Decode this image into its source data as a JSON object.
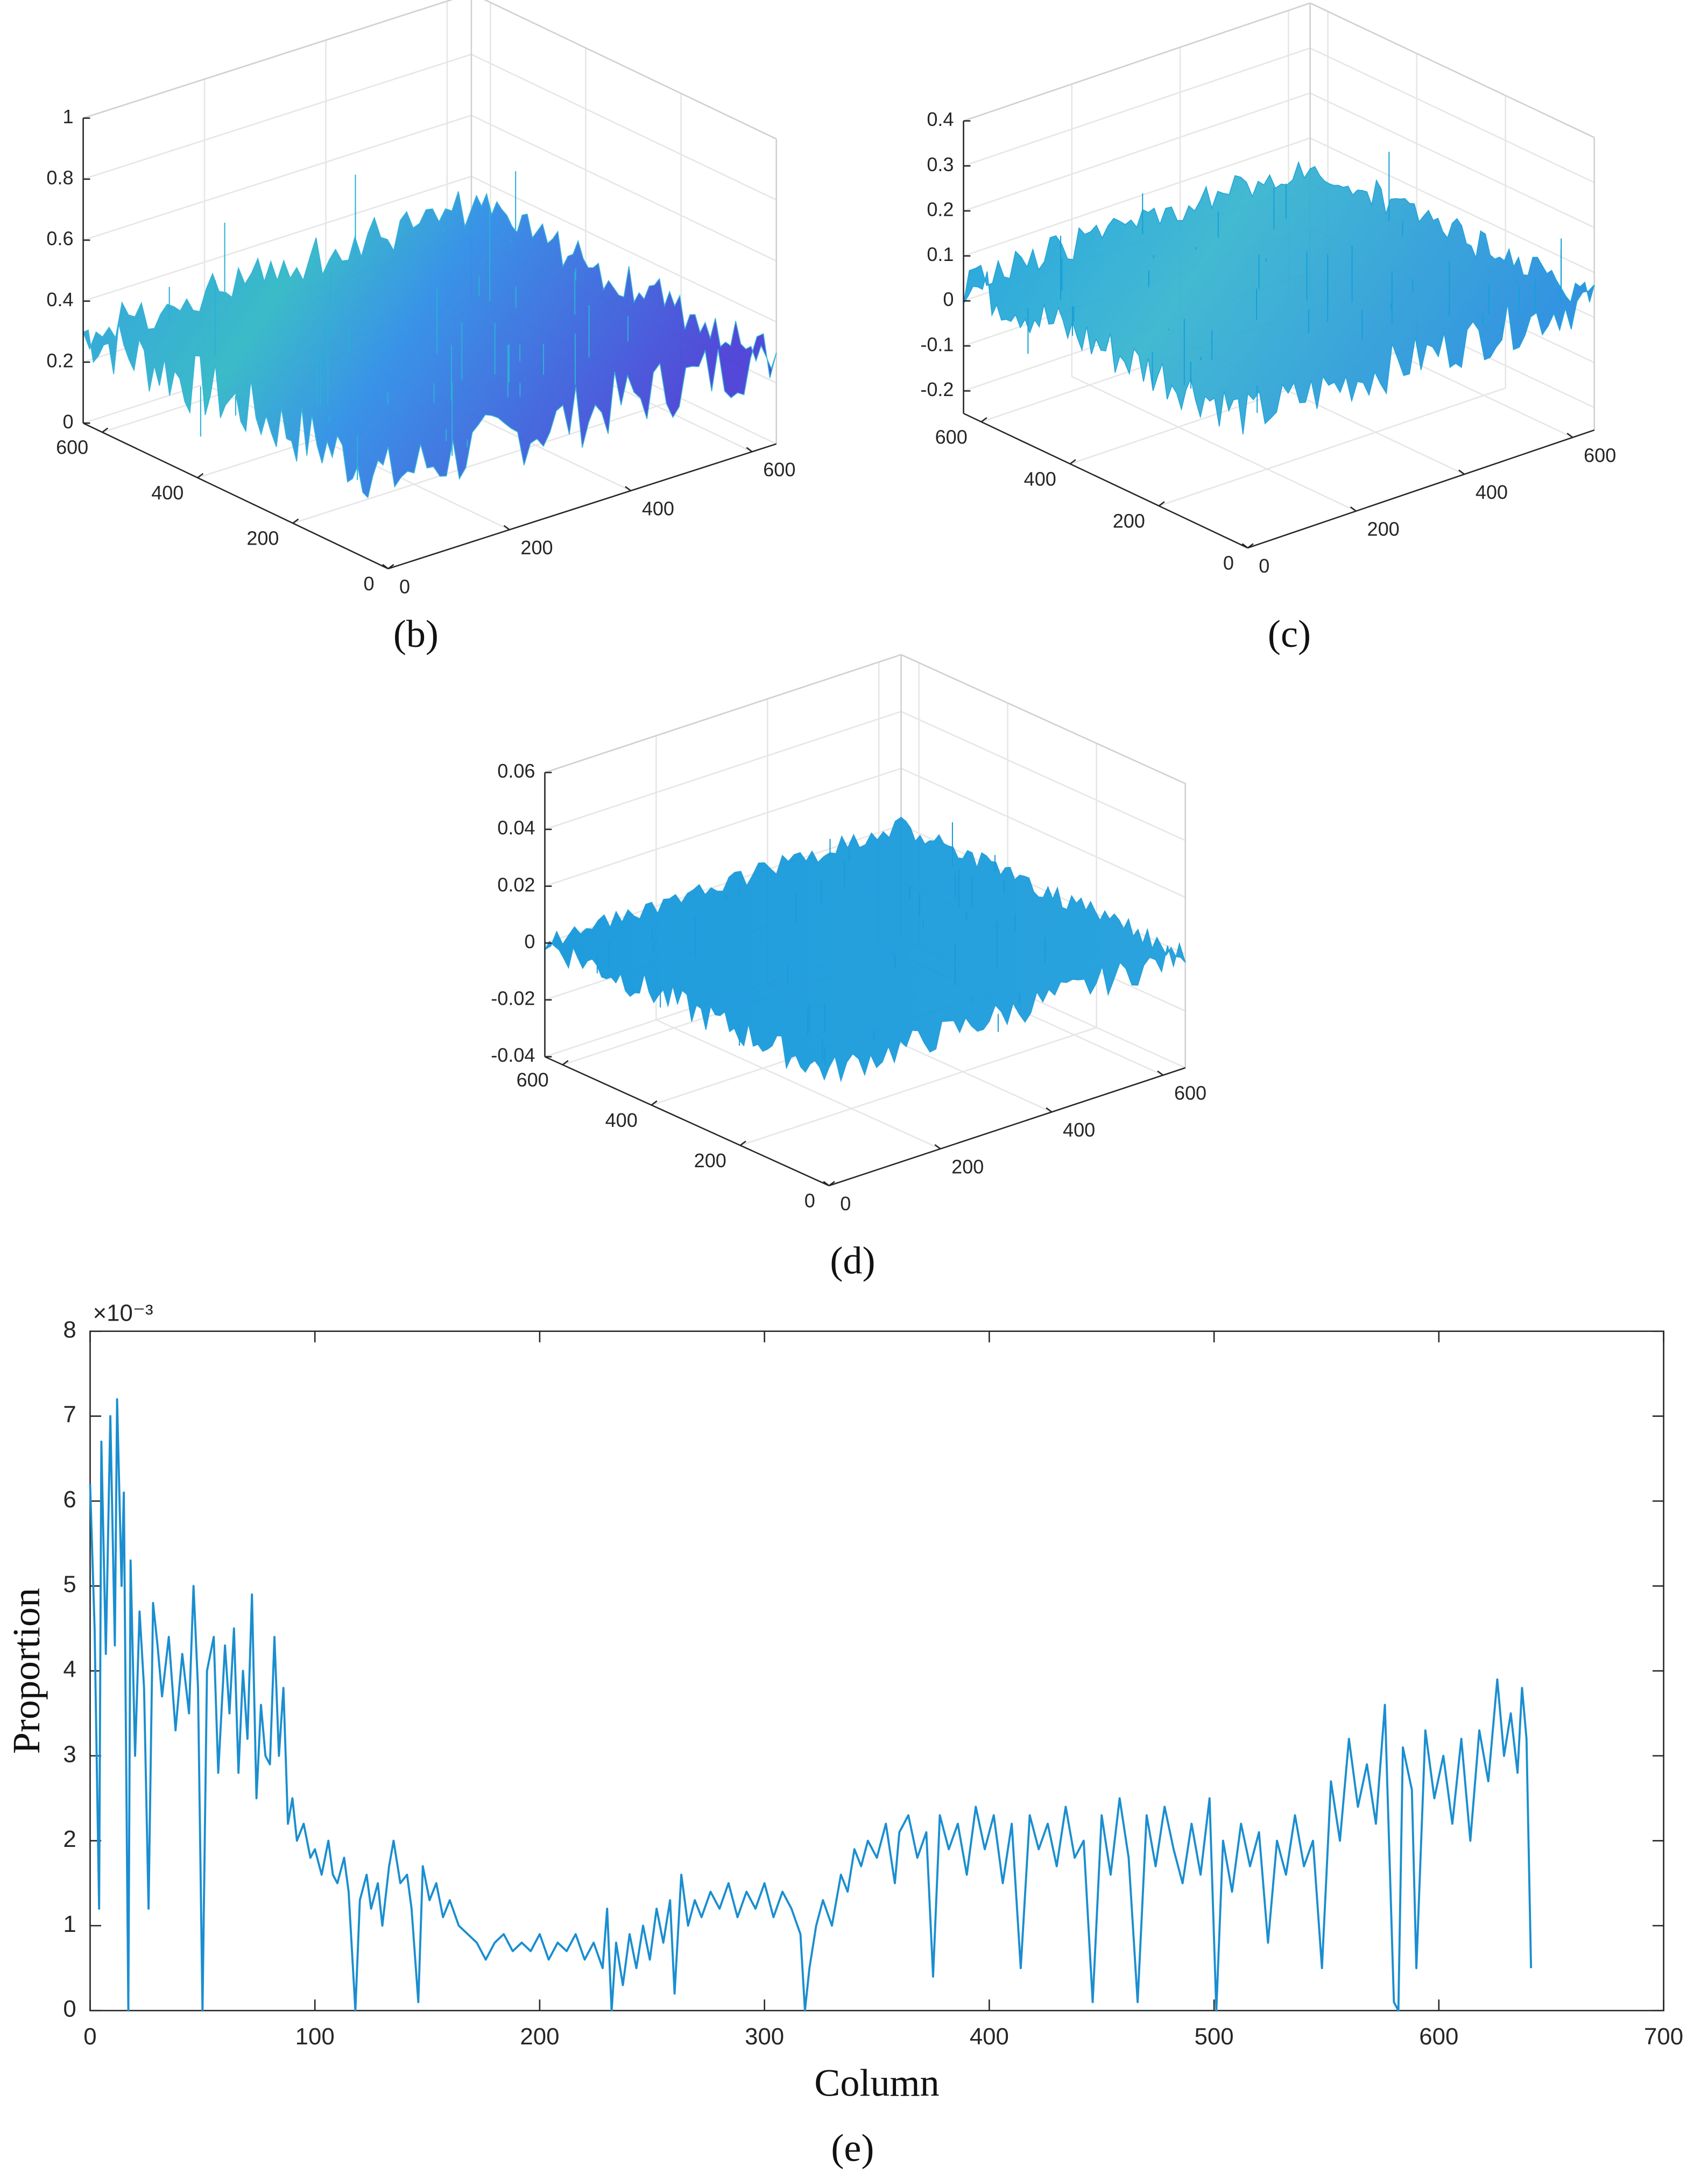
{
  "chart_data": [
    {
      "type": "surface",
      "caption": "(b)",
      "xlim": [
        0,
        640
      ],
      "ylim": [
        0,
        640
      ],
      "zlim": [
        0,
        1
      ],
      "xticks": [
        0,
        200,
        400,
        600
      ],
      "yticks": [
        0,
        200,
        400,
        600
      ],
      "zticks": [
        0,
        0.2,
        0.4,
        0.6,
        0.8,
        1
      ],
      "grid": true
    },
    {
      "type": "surface",
      "caption": "(c)",
      "xlim": [
        0,
        640
      ],
      "ylim": [
        0,
        640
      ],
      "zlim": [
        -0.25,
        0.4
      ],
      "xticks": [
        0,
        200,
        400,
        600
      ],
      "yticks": [
        0,
        200,
        400,
        600
      ],
      "zticks": [
        -0.2,
        -0.1,
        0,
        0.1,
        0.2,
        0.3,
        0.4
      ],
      "grid": true
    },
    {
      "type": "surface",
      "caption": "(d)",
      "xlim": [
        0,
        640
      ],
      "ylim": [
        0,
        640
      ],
      "zlim": [
        -0.04,
        0.06
      ],
      "xticks": [
        0,
        200,
        400,
        600
      ],
      "yticks": [
        0,
        200,
        400,
        600
      ],
      "zticks": [
        -0.04,
        -0.02,
        0,
        0.02,
        0.04,
        0.06
      ],
      "grid": true
    },
    {
      "type": "line",
      "caption": "(e)",
      "xlabel": "Column",
      "ylabel": "Proportion",
      "exponent": "×10⁻³",
      "color": "#1a8ed0",
      "xlim": [
        0,
        700
      ],
      "ylim": [
        0,
        8
      ],
      "xticks": [
        0,
        100,
        200,
        300,
        400,
        500,
        600,
        700
      ],
      "yticks": [
        0,
        1,
        2,
        3,
        4,
        5,
        6,
        7,
        8
      ],
      "x": [
        0,
        2,
        4,
        5,
        7,
        9,
        11,
        12,
        14,
        15,
        17,
        18,
        20,
        22,
        24,
        26,
        28,
        30,
        32,
        35,
        38,
        41,
        44,
        46,
        48,
        50,
        52,
        55,
        57,
        60,
        62,
        64,
        66,
        68,
        70,
        72,
        74,
        76,
        78,
        80,
        82,
        84,
        86,
        88,
        90,
        92,
        95,
        98,
        100,
        103,
        106,
        108,
        110,
        113,
        115,
        118,
        120,
        123,
        125,
        128,
        130,
        133,
        135,
        138,
        141,
        143,
        146,
        148,
        151,
        154,
        157,
        160,
        164,
        168,
        172,
        176,
        180,
        184,
        188,
        192,
        196,
        200,
        204,
        208,
        212,
        216,
        220,
        224,
        228,
        230,
        232,
        234,
        237,
        240,
        243,
        246,
        249,
        252,
        255,
        258,
        260,
        263,
        266,
        269,
        272,
        276,
        280,
        284,
        288,
        292,
        296,
        300,
        304,
        308,
        312,
        316,
        318,
        320,
        323,
        326,
        330,
        334,
        337,
        340,
        343,
        346,
        350,
        354,
        358,
        360,
        364,
        368,
        372,
        375,
        378,
        382,
        386,
        390,
        394,
        398,
        402,
        406,
        410,
        414,
        418,
        422,
        426,
        430,
        434,
        438,
        442,
        446,
        450,
        454,
        458,
        462,
        466,
        470,
        474,
        478,
        482,
        486,
        490,
        494,
        498,
        501,
        504,
        508,
        512,
        516,
        520,
        524,
        528,
        532,
        536,
        540,
        544,
        548,
        552,
        556,
        560,
        564,
        568,
        572,
        576,
        580,
        582,
        584,
        588,
        590,
        594,
        598,
        602,
        606,
        610,
        614,
        618,
        622,
        626,
        629,
        632,
        635,
        637,
        639,
        641
      ],
      "values": [
        6.2,
        4.5,
        1.2,
        6.7,
        4.2,
        7.0,
        4.3,
        7.2,
        5.0,
        6.1,
        0,
        5.3,
        3.0,
        4.7,
        3.8,
        1.2,
        4.8,
        4.3,
        3.7,
        4.4,
        3.3,
        4.2,
        3.5,
        5.0,
        3.8,
        0,
        4.0,
        4.4,
        2.8,
        4.3,
        3.5,
        4.5,
        2.8,
        4.0,
        3.2,
        4.9,
        2.5,
        3.6,
        3.0,
        2.9,
        4.4,
        3.0,
        3.8,
        2.2,
        2.5,
        2.0,
        2.2,
        1.8,
        1.9,
        1.6,
        2.0,
        1.6,
        1.5,
        1.8,
        1.4,
        0,
        1.3,
        1.6,
        1.2,
        1.5,
        1.0,
        1.7,
        2.0,
        1.5,
        1.6,
        1.2,
        0.1,
        1.7,
        1.3,
        1.5,
        1.1,
        1.3,
        1.0,
        0.9,
        0.8,
        0.6,
        0.8,
        0.9,
        0.7,
        0.8,
        0.7,
        0.9,
        0.6,
        0.8,
        0.7,
        0.9,
        0.6,
        0.8,
        0.5,
        1.2,
        0,
        0.8,
        0.3,
        0.9,
        0.5,
        1.0,
        0.6,
        1.2,
        0.8,
        1.3,
        0.2,
        1.6,
        1.0,
        1.3,
        1.1,
        1.4,
        1.2,
        1.5,
        1.1,
        1.4,
        1.2,
        1.5,
        1.1,
        1.4,
        1.2,
        0.9,
        0,
        0.5,
        1.0,
        1.3,
        1.0,
        1.6,
        1.4,
        1.9,
        1.7,
        2.0,
        1.8,
        2.2,
        1.5,
        2.1,
        2.3,
        1.8,
        2.1,
        0.4,
        2.3,
        1.9,
        2.2,
        1.6,
        2.4,
        1.9,
        2.3,
        1.5,
        2.2,
        0.5,
        2.3,
        1.9,
        2.2,
        1.7,
        2.4,
        1.8,
        2.0,
        0.1,
        2.3,
        1.6,
        2.5,
        1.8,
        0.1,
        2.3,
        1.7,
        2.4,
        1.9,
        1.5,
        2.2,
        1.6,
        2.5,
        0,
        2.0,
        1.4,
        2.2,
        1.7,
        2.1,
        0.8,
        2.0,
        1.6,
        2.3,
        1.7,
        2.0,
        0.5,
        2.7,
        2.0,
        3.2,
        2.4,
        2.9,
        2.2,
        3.6,
        0.1,
        0,
        3.1,
        2.6,
        0.5,
        3.3,
        2.5,
        3.0,
        2.2,
        3.2,
        2.0,
        3.3,
        2.7,
        3.9,
        3.0,
        3.5,
        2.8,
        3.8,
        3.2,
        0.5
      ]
    }
  ]
}
